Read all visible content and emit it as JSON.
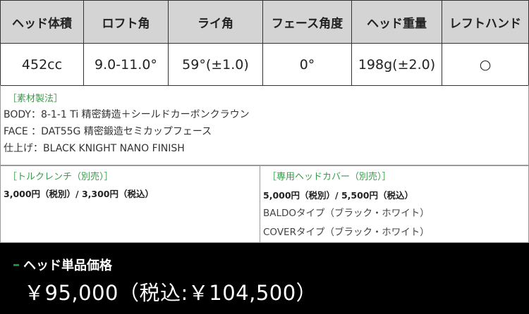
{
  "spec_table": {
    "headers": [
      "ヘッド体積",
      "ロフト角",
      "ライ角",
      "フェース角度",
      "ヘッド重量",
      "レフトハンド"
    ],
    "values": [
      "452cc",
      "9.0-11.0°",
      "59°(±1.0)",
      "0°",
      "198g(±2.0)",
      "○"
    ]
  },
  "materials": {
    "title": "［素材製法］",
    "lines": [
      "BODY：8-1-1 Ti 精密鋳造＋シールドカーボンクラウン",
      "FACE ：DAT55G 精密鍛造セミカップフェース",
      "仕上げ：BLACK KNIGHT NANO FINISH"
    ]
  },
  "torque_wrench": {
    "title": "［トルクレンチ（別売）］",
    "price": "3,000円（税別）/ 3,300円（税込）"
  },
  "head_cover": {
    "title": "［専用ヘッドカバー（別売）］",
    "price": "5,000円（税別）/ 5,500円（税込）",
    "types": [
      "BALDOタイプ（ブラック・ホワイト）",
      "COVERタイプ（ブラック・ホワイト）"
    ]
  },
  "price": {
    "label": "ヘッド単品価格",
    "value": "￥95,000（税込:￥104,500）"
  },
  "colors": {
    "accent": "#3a9a4a",
    "header_bg": "#d4d4d4",
    "price_bg": "#000000"
  }
}
